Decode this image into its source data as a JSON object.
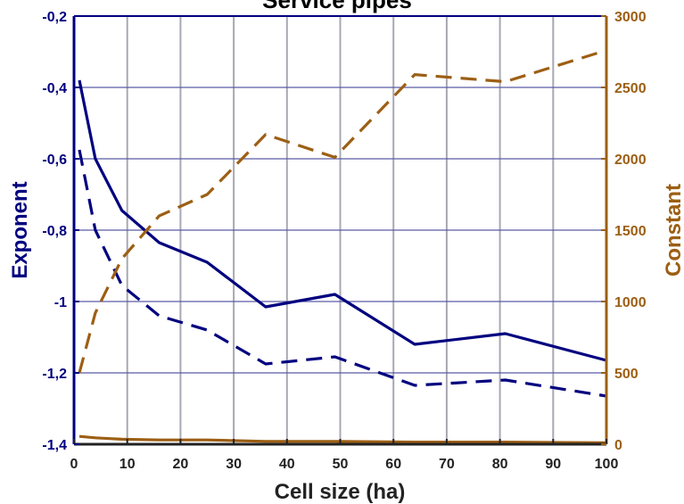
{
  "chart_data": {
    "type": "line",
    "title": "Service pipes",
    "xlabel": "Cell size (ha)",
    "ylabel": "Exponent",
    "y2label": "Constant",
    "xlim": [
      0,
      100
    ],
    "ylim": [
      -1.4,
      -0.2
    ],
    "y2lim": [
      0,
      3000
    ],
    "x_ticks": [
      0,
      10,
      20,
      30,
      40,
      50,
      60,
      70,
      80,
      90,
      100
    ],
    "x_tick_labels": [
      "0",
      "10",
      "20",
      "30",
      "40",
      "50",
      "60",
      "70",
      "80",
      "90",
      "100"
    ],
    "y_ticks": [
      -1.4,
      -1.2,
      -1.0,
      -0.8,
      -0.6,
      -0.4,
      -0.2
    ],
    "y_tick_labels": [
      "-1,4",
      "-1,2",
      "-1",
      "-0,8",
      "-0,6",
      "-0,4",
      "-0,2"
    ],
    "y2_ticks": [
      0,
      500,
      1000,
      1500,
      2000,
      2500,
      3000
    ],
    "y2_tick_labels": [
      "0",
      "500",
      "1000",
      "1500",
      "2000",
      "2500",
      "3000"
    ],
    "grid": true,
    "series": [
      {
        "axis": "left",
        "style": "solid",
        "color": "#00007f",
        "x": [
          1,
          4,
          9,
          16,
          25,
          36,
          49,
          64,
          81,
          100
        ],
        "values": [
          -0.38,
          -0.6,
          -0.745,
          -0.835,
          -0.89,
          -1.015,
          -0.98,
          -1.12,
          -1.09,
          -1.165
        ]
      },
      {
        "axis": "left",
        "style": "dashed",
        "color": "#00007f",
        "x": [
          1,
          4,
          9,
          16,
          25,
          36,
          49,
          64,
          81,
          100
        ],
        "values": [
          -0.575,
          -0.8,
          -0.955,
          -1.04,
          -1.08,
          -1.175,
          -1.155,
          -1.235,
          -1.22,
          -1.265
        ]
      },
      {
        "axis": "right",
        "style": "dashed",
        "color": "#9c5f14",
        "x": [
          1,
          4,
          9,
          16,
          25,
          36,
          49,
          64,
          81,
          100
        ],
        "values": [
          500,
          920,
          1300,
          1600,
          1750,
          2170,
          2010,
          2590,
          2540,
          2760
        ]
      },
      {
        "axis": "right",
        "style": "solid",
        "color": "#9c5f14",
        "x": [
          1,
          4,
          9,
          16,
          25,
          36,
          49,
          64,
          81,
          100
        ],
        "values": [
          55,
          45,
          35,
          30,
          30,
          20,
          20,
          15,
          15,
          10
        ]
      }
    ],
    "colors": {
      "left_axis": "#00007f",
      "right_axis": "#9c5f14",
      "grid_vertical": "#a8a8b4",
      "grid_horizontal": "#5a5aa8",
      "x_axis_text": "#222222"
    }
  }
}
